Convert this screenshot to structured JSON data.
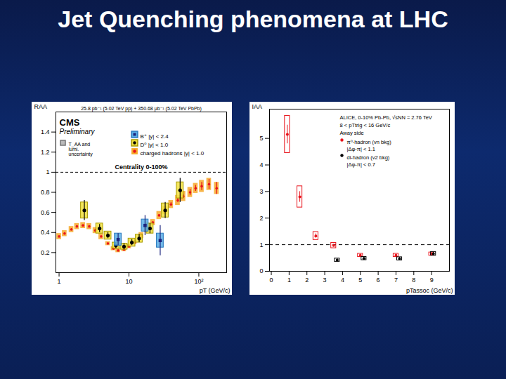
{
  "title": "Jet Quenching phenomena at LHC",
  "chart_data": [
    {
      "type": "scatter",
      "title": "CMS",
      "subtitle": "Preliminary",
      "header": "25.8 pb⁻¹ (5.02 TeV pp) + 350.68 μb⁻¹ (5.02 TeV PbPb)",
      "annotations": [
        "T_AA and lumi. uncertainty",
        "Centrality 0-100%"
      ],
      "x_label": "pT (GeV/c)",
      "y_label": "RAA",
      "log": "x",
      "xlim": [
        0.9,
        250
      ],
      "xticks": [
        1,
        10,
        {
          "value": 100,
          "label": "10²"
        }
      ],
      "ylim": [
        0,
        1.6
      ],
      "yticks": [
        0.2,
        0.4,
        0.6,
        0.8,
        1,
        1.2,
        1.4
      ],
      "hline": 1,
      "legend": "top-right",
      "series": [
        {
          "name": "B⁺ |y| < 2.4",
          "color": "#1a237e",
          "marker": "square",
          "x": [
            7,
            17,
            28
          ],
          "values": [
            0.33,
            0.47,
            0.32
          ],
          "errors": [
            0.06,
            0.1,
            0.15
          ],
          "sys": [
            0.06,
            0.06,
            0.07
          ]
        },
        {
          "name": "D⁰ |y| < 1.0",
          "color": "#000000",
          "marker": "circle",
          "x": [
            2.3,
            3.8,
            5,
            6.5,
            8.5,
            11,
            14,
            20,
            33,
            54
          ],
          "values": [
            0.62,
            0.44,
            0.37,
            0.27,
            0.26,
            0.3,
            0.34,
            0.44,
            0.62,
            0.82
          ],
          "errors": [
            0.1,
            0.04,
            0.03,
            0.03,
            0.03,
            0.03,
            0.04,
            0.05,
            0.08,
            0.12
          ],
          "sys": [
            0.08,
            0.05,
            0.04,
            0.03,
            0.03,
            0.04,
            0.04,
            0.05,
            0.07,
            0.08
          ]
        },
        {
          "name": "charged hadrons |y| < 1.0",
          "color": "#e8141c",
          "marker": "circle",
          "x": [
            1,
            1.2,
            1.5,
            1.8,
            2.2,
            2.7,
            3.3,
            4,
            5,
            6,
            7,
            8.5,
            10,
            12,
            15,
            18,
            22,
            27,
            33,
            40,
            50,
            60,
            75,
            90,
            110,
            140,
            180
          ],
          "values": [
            0.36,
            0.39,
            0.43,
            0.46,
            0.47,
            0.46,
            0.42,
            0.36,
            0.29,
            0.24,
            0.22,
            0.23,
            0.26,
            0.3,
            0.37,
            0.43,
            0.5,
            0.57,
            0.62,
            0.68,
            0.72,
            0.76,
            0.8,
            0.84,
            0.86,
            0.88,
            0.84
          ],
          "errors": [
            0.01,
            0.01,
            0.01,
            0.01,
            0.01,
            0.01,
            0.01,
            0.01,
            0.01,
            0.01,
            0.01,
            0.01,
            0.01,
            0.01,
            0.01,
            0.01,
            0.01,
            0.01,
            0.01,
            0.02,
            0.02,
            0.02,
            0.03,
            0.03,
            0.04,
            0.05,
            0.06
          ],
          "sys": [
            0.03,
            0.03,
            0.03,
            0.03,
            0.03,
            0.03,
            0.03,
            0.03,
            0.02,
            0.02,
            0.02,
            0.02,
            0.02,
            0.02,
            0.03,
            0.03,
            0.03,
            0.04,
            0.04,
            0.04,
            0.05,
            0.05,
            0.05,
            0.05,
            0.06,
            0.06,
            0.06
          ]
        }
      ]
    },
    {
      "type": "scatter",
      "title": "ALICE, 0-10% Pb-Pb, √sNN = 2.76 TeV",
      "annotations": [
        "8 < pTtrig < 16 GeV/c",
        "Away side"
      ],
      "x_label": "pTassoc (GeV/c)",
      "y_label": "IAA",
      "xlim": [
        -0.1,
        10
      ],
      "xticks": [
        0,
        1,
        2,
        3,
        4,
        5,
        6,
        7,
        8,
        9
      ],
      "ylim": [
        0,
        6.1
      ],
      "yticks": [
        0,
        1,
        2,
        3,
        4,
        5
      ],
      "hline": 1,
      "legend": "top-right",
      "series": [
        {
          "name": "π⁰-hadron (vn bkg)",
          "description": "|Δφ-π| < 1.1",
          "color": "#e8141c",
          "marker": "circle",
          "x": [
            0.9,
            1.6,
            2.5,
            3.5,
            5,
            7,
            9
          ],
          "values": [
            5.15,
            2.8,
            1.33,
            0.97,
            0.6,
            0.6,
            0.65
          ],
          "errors": [
            0.35,
            0.2,
            0.08,
            0.05,
            0.05,
            0.05,
            0.05
          ],
          "sys": [
            0.7,
            0.4,
            0.15,
            0.1,
            0.06,
            0.06,
            0.06
          ]
        },
        {
          "name": "di-hadron (v2 bkg)",
          "description": "|Δφ-π| < 0.7",
          "color": "#000000",
          "marker": "circle",
          "x": [
            3.7,
            5.2,
            7.2,
            9.1
          ],
          "values": [
            0.42,
            0.48,
            0.47,
            0.66
          ],
          "errors": [
            0.05,
            0.05,
            0.05,
            0.06
          ],
          "sys": [
            0.06,
            0.06,
            0.06,
            0.07
          ]
        }
      ]
    }
  ]
}
